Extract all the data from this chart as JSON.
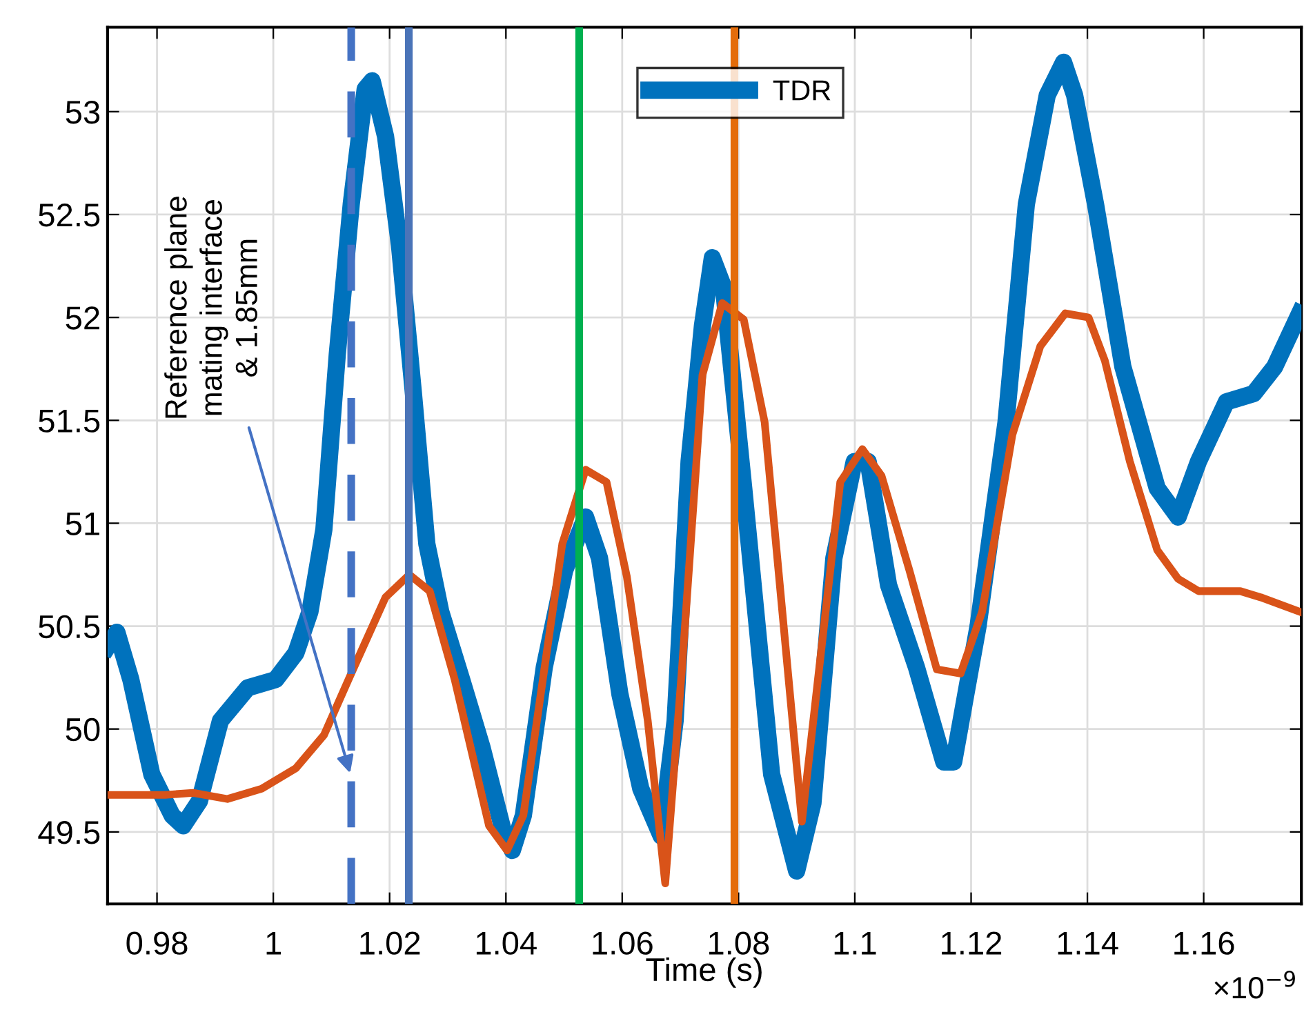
{
  "chart_data": {
    "type": "line",
    "xlabel": "Time (s)",
    "annotations": [
      "×10$^{−9}$"
    ],
    "xlim": [
      0.9715,
      1.1768
    ],
    "ylim": [
      49.15,
      53.41
    ],
    "xticks": [
      0.98,
      1,
      1.02,
      1.04,
      1.06,
      1.08,
      1.1,
      1.12,
      1.14,
      1.16
    ],
    "yticks": [
      49.5,
      50,
      50.5,
      51,
      51.5,
      52,
      52.5,
      53
    ],
    "grid": true,
    "legend": "top",
    "ref_lines": [
      {
        "axis": "x",
        "value": 1.0134,
        "color": "#4472c4",
        "line_style": "dashed",
        "label": "Reference plane\nmating interface\n& 1.85mm"
      },
      {
        "axis": "x",
        "value": 1.0233,
        "color": "#4a74b8",
        "line_style": "solid"
      },
      {
        "axis": "x",
        "value": 1.0526,
        "color": "#00b050",
        "line_style": "solid"
      },
      {
        "axis": "x",
        "value": 1.0793,
        "color": "#e46c0a",
        "line_style": "solid"
      }
    ],
    "series": [
      {
        "name": "TDR",
        "color": "#0072bd",
        "x": [
          0.9715,
          0.9731,
          0.9755,
          0.9791,
          0.9826,
          0.9845,
          0.9873,
          0.9909,
          0.9956,
          1.0004,
          1.0039,
          1.0063,
          1.0087,
          1.011,
          1.0134,
          1.0158,
          1.017,
          1.0193,
          1.0217,
          1.0241,
          1.0264,
          1.0288,
          1.0324,
          1.0359,
          1.0395,
          1.0411,
          1.043,
          1.0466,
          1.0501,
          1.0537,
          1.0561,
          1.0596,
          1.0632,
          1.0667,
          1.0691,
          1.0715,
          1.0738,
          1.0755,
          1.0774,
          1.0809,
          1.0857,
          1.09,
          1.0928,
          1.0964,
          1.0999,
          1.1023,
          1.1058,
          1.1106,
          1.1153,
          1.117,
          1.1212,
          1.126,
          1.1295,
          1.1331,
          1.1359,
          1.1378,
          1.1414,
          1.1461,
          1.152,
          1.1556,
          1.1591,
          1.1639,
          1.1686,
          1.1722,
          1.1765
        ],
        "values": [
          50.4,
          50.47,
          50.24,
          49.78,
          49.58,
          49.53,
          49.65,
          50.04,
          50.2,
          50.24,
          50.37,
          50.57,
          50.97,
          51.82,
          52.55,
          53.11,
          53.15,
          52.88,
          52.35,
          51.63,
          50.9,
          50.57,
          50.24,
          49.91,
          49.51,
          49.41,
          49.58,
          50.3,
          50.77,
          51.03,
          50.83,
          50.17,
          49.71,
          49.48,
          50.04,
          51.3,
          51.96,
          52.29,
          52.15,
          51.17,
          49.78,
          49.31,
          49.64,
          50.83,
          51.3,
          51.3,
          50.7,
          50.3,
          49.84,
          49.84,
          50.5,
          51.49,
          52.55,
          53.08,
          53.24,
          53.08,
          52.55,
          51.76,
          51.17,
          51.03,
          51.3,
          51.59,
          51.63,
          51.76,
          52.02
        ]
      },
      {
        "color": "#d95319",
        "x": [
          0.9715,
          0.9814,
          0.9862,
          0.9921,
          0.998,
          1.0039,
          1.0087,
          1.0134,
          1.0193,
          1.0234,
          1.0269,
          1.0312,
          1.0371,
          1.0402,
          1.043,
          1.0497,
          1.0537,
          1.0573,
          1.0608,
          1.0644,
          1.0674,
          1.0703,
          1.0738,
          1.0772,
          1.0809,
          1.0845,
          1.0909,
          1.0975,
          1.1013,
          1.1046,
          1.1094,
          1.1141,
          1.1182,
          1.1219,
          1.1271,
          1.1319,
          1.1362,
          1.1402,
          1.143,
          1.1473,
          1.152,
          1.1556,
          1.1591,
          1.1663,
          1.1698,
          1.1765
        ],
        "values": [
          49.68,
          49.68,
          49.69,
          49.66,
          49.71,
          49.81,
          49.97,
          50.27,
          50.64,
          50.75,
          50.67,
          50.24,
          49.53,
          49.41,
          49.58,
          50.9,
          51.26,
          51.2,
          50.74,
          50.04,
          49.25,
          50.3,
          51.72,
          52.07,
          51.99,
          51.49,
          49.55,
          51.2,
          51.36,
          51.23,
          50.77,
          50.29,
          50.27,
          50.57,
          51.43,
          51.86,
          52.02,
          52.0,
          51.79,
          51.3,
          50.87,
          50.73,
          50.67,
          50.67,
          50.64,
          50.57
        ]
      }
    ]
  }
}
